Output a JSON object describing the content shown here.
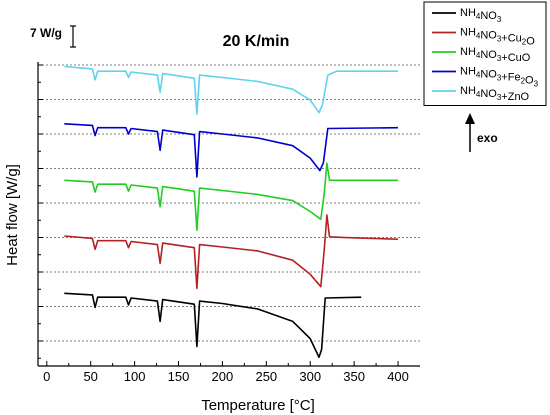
{
  "chart_data": {
    "type": "line",
    "title": "20 K/min",
    "xlabel": "Temperature [°C]",
    "ylabel": "Heat flow [W/g]",
    "xlim": [
      -10,
      425
    ],
    "xticks": [
      "0",
      "50",
      "100",
      "150",
      "200",
      "250",
      "300",
      "350",
      "400"
    ],
    "grid": "horizontal dashed",
    "scale_bar_label": "7 W/g",
    "exo_label": "exo",
    "legend_position": "top-right",
    "series": [
      {
        "name": "NH₄NO₃",
        "label_parts": [
          [
            "NH",
            ""
          ],
          [
            "4",
            "sub"
          ],
          [
            "NO",
            ""
          ],
          [
            "3",
            "sub"
          ]
        ],
        "color": "#000000",
        "offset": 0,
        "x_end": 358,
        "points": [
          [
            20,
            0.3
          ],
          [
            52,
            0.2
          ],
          [
            55,
            -0.6
          ],
          [
            58,
            0.05
          ],
          [
            90,
            0.05
          ],
          [
            93,
            -0.45
          ],
          [
            96,
            0.0
          ],
          [
            126,
            -0.2
          ],
          [
            129,
            -1.5
          ],
          [
            132,
            -0.1
          ],
          [
            168,
            -0.4
          ],
          [
            171,
            -3.1
          ],
          [
            174,
            -0.2
          ],
          [
            200,
            -0.35
          ],
          [
            240,
            -0.7
          ],
          [
            280,
            -1.5
          ],
          [
            300,
            -2.6
          ],
          [
            310,
            -3.8
          ],
          [
            313,
            -3.3
          ],
          [
            317,
            0.0
          ],
          [
            358,
            0.05
          ]
        ]
      },
      {
        "name": "NH₄NO₃+Cu₂O",
        "label_parts": [
          [
            "NH",
            ""
          ],
          [
            "4",
            "sub"
          ],
          [
            "NO",
            ""
          ],
          [
            "3",
            "sub"
          ],
          [
            "+Cu",
            ""
          ],
          [
            "2",
            "sub"
          ],
          [
            "O",
            ""
          ]
        ],
        "color": "#b22222",
        "offset": 1.2,
        "x_end": 400,
        "points": [
          [
            20,
            0.35
          ],
          [
            52,
            0.2
          ],
          [
            55,
            -0.5
          ],
          [
            58,
            0.05
          ],
          [
            90,
            0.05
          ],
          [
            93,
            -0.4
          ],
          [
            96,
            0.0
          ],
          [
            126,
            -0.2
          ],
          [
            129,
            -1.4
          ],
          [
            132,
            -0.1
          ],
          [
            168,
            -0.4
          ],
          [
            171,
            -3.0
          ],
          [
            174,
            -0.2
          ],
          [
            200,
            -0.35
          ],
          [
            240,
            -0.6
          ],
          [
            280,
            -1.2
          ],
          [
            300,
            -2.1
          ],
          [
            312,
            -2.9
          ],
          [
            316,
            -0.5
          ],
          [
            319,
            1.7
          ],
          [
            322,
            0.3
          ],
          [
            340,
            0.25
          ],
          [
            400,
            0.15
          ]
        ]
      },
      {
        "name": "NH₄NO₃+CuO",
        "label_parts": [
          [
            "NH",
            ""
          ],
          [
            "4",
            "sub"
          ],
          [
            "NO",
            ""
          ],
          [
            "3",
            "sub"
          ],
          [
            "+CuO",
            ""
          ]
        ],
        "color": "#22cc22",
        "offset": 2.4,
        "x_end": 400,
        "points": [
          [
            20,
            0.3
          ],
          [
            52,
            0.2
          ],
          [
            55,
            -0.45
          ],
          [
            58,
            0.05
          ],
          [
            90,
            0.05
          ],
          [
            93,
            -0.4
          ],
          [
            96,
            0.0
          ],
          [
            126,
            -0.2
          ],
          [
            129,
            -1.4
          ],
          [
            132,
            -0.1
          ],
          [
            168,
            -0.4
          ],
          [
            171,
            -2.9
          ],
          [
            174,
            -0.2
          ],
          [
            200,
            -0.35
          ],
          [
            240,
            -0.6
          ],
          [
            280,
            -1.0
          ],
          [
            300,
            -1.7
          ],
          [
            312,
            -2.2
          ],
          [
            316,
            -0.5
          ],
          [
            319,
            1.4
          ],
          [
            322,
            0.3
          ],
          [
            340,
            0.3
          ],
          [
            400,
            0.3
          ]
        ]
      },
      {
        "name": "NH₄NO₃+Fe₂O₃",
        "label_parts": [
          [
            "NH",
            ""
          ],
          [
            "4",
            "sub"
          ],
          [
            "NO",
            ""
          ],
          [
            "3",
            "sub"
          ],
          [
            "+Fe",
            ""
          ],
          [
            "2",
            "sub"
          ],
          [
            "O",
            ""
          ],
          [
            "3",
            "sub"
          ]
        ],
        "color": "#0000cc",
        "offset": 3.6,
        "x_end": 400,
        "points": [
          [
            20,
            0.3
          ],
          [
            52,
            0.2
          ],
          [
            55,
            -0.45
          ],
          [
            58,
            0.05
          ],
          [
            90,
            0.05
          ],
          [
            93,
            -0.35
          ],
          [
            96,
            0.0
          ],
          [
            126,
            -0.2
          ],
          [
            129,
            -1.4
          ],
          [
            132,
            -0.1
          ],
          [
            168,
            -0.4
          ],
          [
            171,
            -3.1
          ],
          [
            174,
            -0.2
          ],
          [
            200,
            -0.35
          ],
          [
            240,
            -0.6
          ],
          [
            280,
            -1.1
          ],
          [
            300,
            -1.9
          ],
          [
            311,
            -2.7
          ],
          [
            315,
            -2.2
          ],
          [
            320,
            0.0
          ],
          [
            400,
            0.05
          ]
        ]
      },
      {
        "name": "NH₄NO₃+ZnO",
        "label_parts": [
          [
            "NH",
            ""
          ],
          [
            "4",
            "sub"
          ],
          [
            "NO",
            ""
          ],
          [
            "3",
            "sub"
          ],
          [
            "+ZnO",
            ""
          ]
        ],
        "color": "#5fd3ec",
        "offset": 4.8,
        "x_end": 400,
        "points": [
          [
            20,
            0.35
          ],
          [
            52,
            0.2
          ],
          [
            55,
            -0.5
          ],
          [
            58,
            0.05
          ],
          [
            90,
            0.05
          ],
          [
            93,
            -0.35
          ],
          [
            96,
            0.0
          ],
          [
            126,
            -0.2
          ],
          [
            129,
            -1.3
          ],
          [
            132,
            -0.1
          ],
          [
            168,
            -0.4
          ],
          [
            171,
            -2.7
          ],
          [
            174,
            -0.2
          ],
          [
            200,
            -0.35
          ],
          [
            240,
            -0.6
          ],
          [
            280,
            -1.1
          ],
          [
            300,
            -1.8
          ],
          [
            310,
            -2.6
          ],
          [
            314,
            -2.1
          ],
          [
            320,
            -0.2
          ],
          [
            330,
            0.05
          ],
          [
            400,
            0.05
          ]
        ]
      }
    ]
  }
}
